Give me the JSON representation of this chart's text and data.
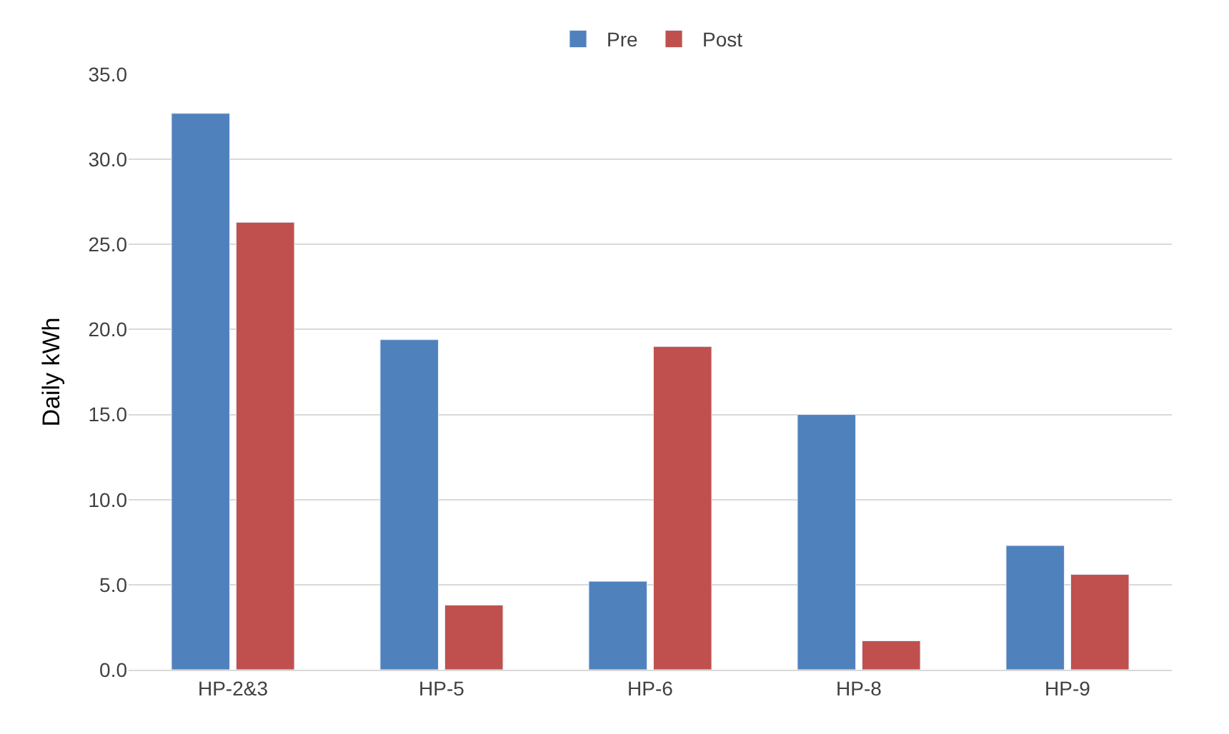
{
  "chart_data": {
    "type": "bar",
    "ylabel": "Daily kWh",
    "categories": [
      "HP-2&3",
      "HP-5",
      "HP-6",
      "HP-8",
      "HP-9"
    ],
    "series": [
      {
        "name": "Pre",
        "color": "#4f81bd",
        "values": [
          32.7,
          19.4,
          5.2,
          15.0,
          7.3
        ]
      },
      {
        "name": "Post",
        "color": "#c0504d",
        "values": [
          26.3,
          3.8,
          19.0,
          1.7,
          5.6
        ]
      }
    ],
    "ylim": [
      0,
      35
    ],
    "yticks": [
      {
        "value": 0,
        "label": "0.0"
      },
      {
        "value": 5,
        "label": "5.0"
      },
      {
        "value": 10,
        "label": "10.0"
      },
      {
        "value": 15,
        "label": "15.0"
      },
      {
        "value": 20,
        "label": "20.0"
      },
      {
        "value": 25,
        "label": "25.0"
      },
      {
        "value": 30,
        "label": "30.0"
      },
      {
        "value": 35,
        "label": "35.0"
      }
    ],
    "grid": "y",
    "legend": "top"
  }
}
